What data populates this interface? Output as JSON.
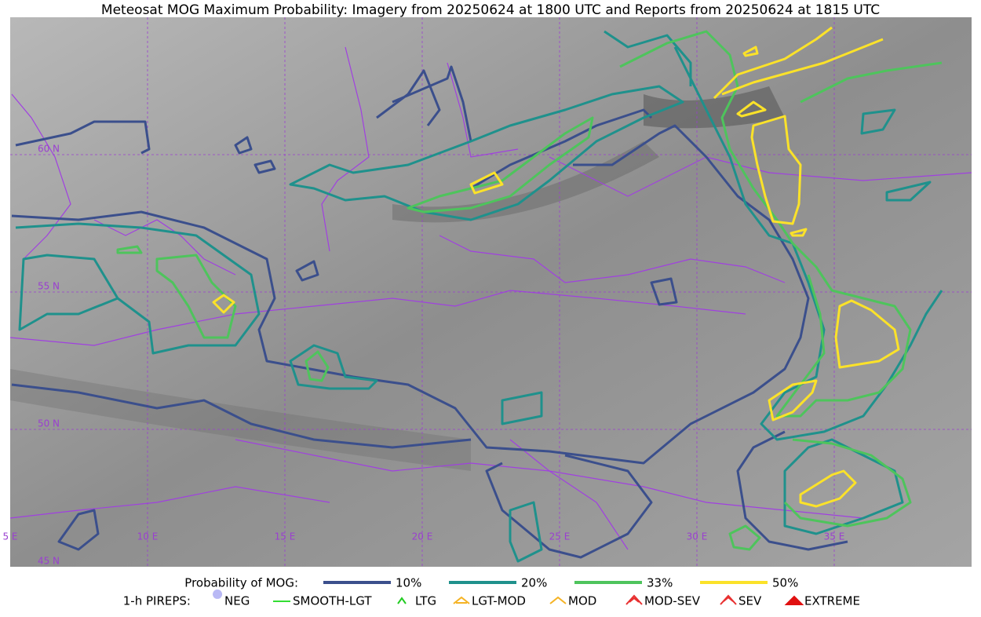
{
  "title": "Meteosat MOG Maximum Probability: Imagery from 20250624 at 1800 UTC and Reports from 20250624 at 1815 UTC",
  "map": {
    "lon_labels": [
      "5 E",
      "10 E",
      "15 E",
      "20 E",
      "25 E",
      "30 E",
      "35 E"
    ],
    "lat_labels": [
      "60 N",
      "55 N",
      "50 N",
      "45 N"
    ]
  },
  "legend": {
    "probability": {
      "label": "Probability of MOG:",
      "levels": [
        {
          "label": "10%",
          "color": "#3b4f8c"
        },
        {
          "label": "20%",
          "color": "#1f918c"
        },
        {
          "label": "33%",
          "color": "#4ec45c"
        },
        {
          "label": "50%",
          "color": "#fbe229"
        }
      ]
    },
    "pireps": {
      "label": "1-h PIREPS:",
      "items": [
        {
          "label": "NEG",
          "color": "#b9b9f5"
        },
        {
          "label": "SMOOTH-LGT",
          "color": "#33dd33"
        },
        {
          "label": "LTG",
          "color": "#22cc22"
        },
        {
          "label": "LGT-MOD",
          "color": "#f5b324"
        },
        {
          "label": "MOD",
          "color": "#f5b324"
        },
        {
          "label": "MOD-SEV",
          "color": "#e83030"
        },
        {
          "label": "SEV",
          "color": "#e83030"
        },
        {
          "label": "EXTREME",
          "color": "#e01010"
        }
      ]
    }
  }
}
